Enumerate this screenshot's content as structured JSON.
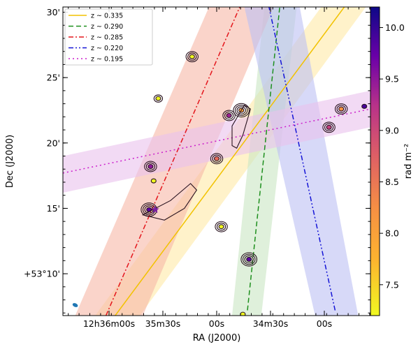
{
  "chart_data": {
    "type": "scatter",
    "xlabel": "RA (J2000)",
    "ylabel": "Dec (J2000)",
    "x_tick_labels": [
      "12h36m00s",
      "35m30s",
      "00s",
      "34m30s",
      "00s"
    ],
    "y_tick_labels": [
      "30'",
      "25'",
      "20'",
      "15'",
      "+53°10'"
    ],
    "y_tick_values": [
      30,
      25,
      20,
      15,
      10
    ],
    "ylim": [
      6.8,
      30.4
    ],
    "colorbar": {
      "label": "rad m⁻²",
      "min": 7.2,
      "max": 10.2,
      "ticks": [
        "7.5",
        "8.0",
        "8.5",
        "9.0",
        "9.5",
        "10.0"
      ],
      "tick_values": [
        7.5,
        8.0,
        8.5,
        9.0,
        9.5,
        10.0
      ],
      "colormap": "plasma_r"
    },
    "legend": {
      "position": "top-left"
    },
    "series": [
      {
        "name": "z ~ 0.335",
        "color": "#f2c200",
        "band_color": "#ffe9a6",
        "style": "solid",
        "line": [
          [
            -0.66,
            6.8
          ],
          [
            0.83,
            30.4
          ]
        ],
        "band": [
          [
            -0.79,
            -0.5
          ],
          [
            0.68,
            0.97
          ]
        ]
      },
      {
        "name": "z ~ 0.290",
        "color": "#1e8f1e",
        "band_color": "#c9e6c3",
        "style": "dashed",
        "line": [
          [
            0.2,
            7.2
          ],
          [
            0.41,
            30.4
          ]
        ],
        "band": [
          [
            0.1,
            0.29
          ],
          [
            0.31,
            0.52
          ]
        ]
      },
      {
        "name": "z ~ 0.285",
        "color": "#e4161c",
        "band_color": "#f6b7a6",
        "style": "dashdot",
        "line": [
          [
            -0.72,
            6.8
          ],
          [
            0.15,
            30.4
          ]
        ],
        "band": [
          [
            -0.92,
            -0.48
          ],
          [
            -0.05,
            0.37
          ]
        ]
      },
      {
        "name": "z ~ 0.220",
        "color": "#1414d6",
        "band_color": "#bcc0f3",
        "style": "dashdotdot",
        "line": [
          [
            0.77,
            7.2
          ],
          [
            0.34,
            30.4
          ]
        ],
        "band": [
          [
            0.64,
            0.92
          ],
          [
            0.18,
            0.54
          ]
        ]
      },
      {
        "name": "z ~ 0.195",
        "color": "#cc1fcc",
        "band_color": "#e9c1ec",
        "style": "dotted",
        "line": [
          [
            -1,
            17.7
          ],
          [
            1,
            22.6
          ]
        ],
        "band": [
          [
            16.2,
            19.0
          ],
          [
            21.2,
            24.0
          ]
        ]
      }
    ],
    "sources": [
      {
        "x": 0.81,
        "y": 22.6,
        "rm": 8.2,
        "size": 3
      },
      {
        "x": 0.73,
        "y": 21.2,
        "rm": 9.1,
        "size": 3
      },
      {
        "x": -0.16,
        "y": 26.6,
        "rm": 7.2,
        "size": 3
      },
      {
        "x": -0.38,
        "y": 23.4,
        "rm": 7.2,
        "size": 2
      },
      {
        "x": 0.08,
        "y": 22.1,
        "rm": 9.4,
        "size": 3
      },
      {
        "x": 0.16,
        "y": 22.5,
        "rm": 8.0,
        "size": 4
      },
      {
        "x": 0.0,
        "y": 18.8,
        "rm": 8.6,
        "size": 3
      },
      {
        "x": -0.43,
        "y": 18.2,
        "rm": 9.5,
        "size": 3
      },
      {
        "x": -0.44,
        "y": 14.9,
        "rm": 9.8,
        "size": 4
      },
      {
        "x": -0.41,
        "y": 17.1,
        "rm": 7.2,
        "size": 1
      },
      {
        "x": 0.03,
        "y": 13.6,
        "rm": 7.2,
        "size": 3
      },
      {
        "x": 0.21,
        "y": 11.1,
        "rm": 9.8,
        "size": 4
      },
      {
        "x": 0.17,
        "y": 6.9,
        "rm": 7.2,
        "size": 1
      },
      {
        "x": 0.96,
        "y": 22.8,
        "rm": 9.9,
        "size": 1
      }
    ],
    "marker": {
      "x": -0.4,
      "y": 14.9,
      "symbol": "star",
      "color": "#7b1fa2"
    }
  }
}
